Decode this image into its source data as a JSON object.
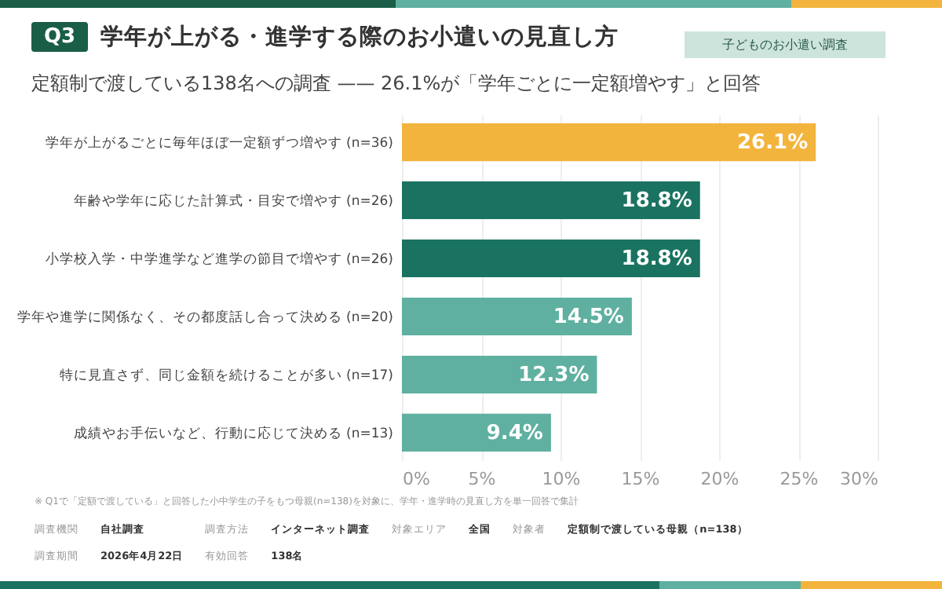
{
  "chart_data": {
    "type": "bar",
    "orientation": "horizontal",
    "title": "学年が上がる・進学する際のお小遣いの見直し方",
    "subtitle": "定額制で渡している138名への調査 —— 26.1%が「学年ごとに一定額増やす」と回答",
    "categories": [
      "学年が上がるごとに毎年ほぼ一定額ずつ増やす (n=36)",
      "年齢や学年に応じた計算式・目安で増やす (n=26)",
      "小学校入学・中学進学など進学の節目で増やす (n=26)",
      "学年や進学に関係なく、その都度話し合って決める (n=20)",
      "特に見直さず、同じ金額を続けることが多い (n=17)",
      "成績やお手伝いなど、行動に応じて決める (n=13)"
    ],
    "values": [
      26.1,
      18.8,
      18.8,
      14.5,
      12.3,
      9.4
    ],
    "colors": [
      "#f2b43c",
      "#1a7360",
      "#1a7360",
      "#5fb0a0",
      "#5fb0a0",
      "#5fb0a0"
    ],
    "value_labels": [
      "26.1%",
      "18.8%",
      "18.8%",
      "14.5%",
      "12.3%",
      "9.4%"
    ],
    "xlim": [
      0,
      30
    ],
    "xticks": [
      {
        "value": 0,
        "label": "0%"
      },
      {
        "value": 5,
        "label": "5%"
      },
      {
        "value": 10,
        "label": "10%"
      },
      {
        "value": 15,
        "label": "15%"
      },
      {
        "value": 20,
        "label": "20%"
      },
      {
        "value": 25,
        "label": "25%"
      },
      {
        "value": 30,
        "label": "30%"
      }
    ],
    "grid": "x",
    "annotations": [
      "Q3",
      "子どものお小遣い調査",
      "※ Q1で「定額で渡している」と回答した小中学生の子をもつ母親(n=138)を対象に、学年・進学時の見直し方を単一回答で集計",
      "調査機関",
      "自社調査",
      "調査方法",
      "インターネット調査",
      "対象エリア",
      "全国",
      "対象者",
      "定額制で渡している母親（n=138）",
      "調査期間",
      "2026年4月22日",
      "有効回答",
      "138名"
    ]
  }
}
